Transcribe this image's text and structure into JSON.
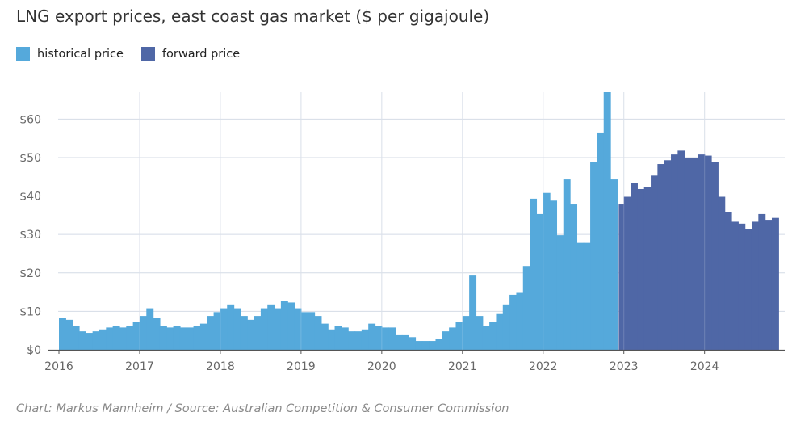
{
  "chart_data": {
    "type": "bar",
    "title": "LNG export prices, east coast gas market ($ per gigajoule)",
    "xlabel": "",
    "ylabel": "",
    "ylim": [
      0,
      67
    ],
    "y_ticks": [
      0,
      10,
      20,
      30,
      40,
      50,
      60
    ],
    "y_tick_labels": [
      "$0",
      "$10",
      "$20",
      "$30",
      "$40",
      "$50",
      "$60"
    ],
    "x_ticks": [
      "2016",
      "2017",
      "2018",
      "2019",
      "2020",
      "2021",
      "2022",
      "2023",
      "2024"
    ],
    "grid": true,
    "legend_position": "top-left",
    "series": [
      {
        "name": "historical price",
        "color": "#55a9db",
        "start": "2016-01",
        "values": [
          8.3,
          7.8,
          6.3,
          4.8,
          4.4,
          4.8,
          5.3,
          5.8,
          6.3,
          5.8,
          6.3,
          7.3,
          8.8,
          10.8,
          8.3,
          6.3,
          5.8,
          6.3,
          5.8,
          5.8,
          6.3,
          6.8,
          8.8,
          9.8,
          10.8,
          11.8,
          10.8,
          8.8,
          7.8,
          8.8,
          10.8,
          11.8,
          10.8,
          12.8,
          12.3,
          10.8,
          9.8,
          9.8,
          8.8,
          6.8,
          5.3,
          6.3,
          5.8,
          4.8,
          4.8,
          5.3,
          6.8,
          6.3,
          5.8,
          5.8,
          3.8,
          3.8,
          3.3,
          2.3,
          2.3,
          2.3,
          2.8,
          4.8,
          5.8,
          7.3,
          8.8,
          19.3,
          8.8,
          6.3,
          7.3,
          9.3,
          11.8,
          14.3,
          14.8,
          21.8,
          39.3,
          35.3,
          40.8,
          38.8,
          29.8,
          44.3,
          37.8,
          27.8,
          27.8,
          48.8,
          56.3,
          67.0,
          44.3
        ]
      },
      {
        "name": "forward price",
        "color": "#4f67a6",
        "start": "2022-12",
        "values": [
          37.8,
          39.8,
          43.3,
          41.8,
          42.3,
          45.3,
          48.3,
          49.3,
          50.8,
          51.8,
          49.8,
          49.8,
          50.8,
          50.5,
          48.8,
          39.8,
          35.8,
          33.3,
          32.8,
          31.3,
          33.3,
          35.3,
          33.8,
          34.3
        ]
      }
    ],
    "source": "Chart: Markus Mannheim / Source: Australian Competition & Consumer Commission"
  }
}
